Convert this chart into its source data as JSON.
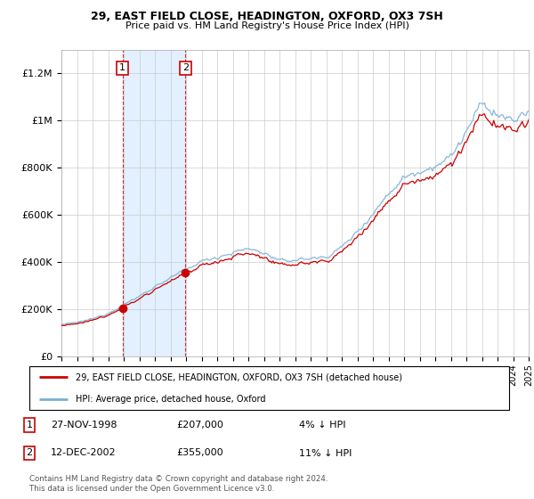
{
  "title": "29, EAST FIELD CLOSE, HEADINGTON, OXFORD, OX3 7SH",
  "subtitle": "Price paid vs. HM Land Registry's House Price Index (HPI)",
  "sale1_date": "27-NOV-1998",
  "sale1_price": 207000,
  "sale1_label": "1",
  "sale1_hpi_pct": "4% ↓ HPI",
  "sale2_date": "12-DEC-2002",
  "sale2_price": 355000,
  "sale2_label": "2",
  "sale2_hpi_pct": "11% ↓ HPI",
  "legend_line1": "29, EAST FIELD CLOSE, HEADINGTON, OXFORD, OX3 7SH (detached house)",
  "legend_line2": "HPI: Average price, detached house, Oxford",
  "footer": "Contains HM Land Registry data © Crown copyright and database right 2024.\nThis data is licensed under the Open Government Licence v3.0.",
  "line_color_property": "#cc0000",
  "line_color_hpi": "#7ab0d4",
  "shade_color": "#ddeeff",
  "marker_color": "#cc0000",
  "sale1_x_year": 1998.917,
  "sale2_x_year": 2002.958,
  "ylim_max": 1300000,
  "ylim_min": 0,
  "xlim_min": 1995,
  "xlim_max": 2025,
  "background_color": "#ffffff",
  "grid_color": "#cccccc"
}
